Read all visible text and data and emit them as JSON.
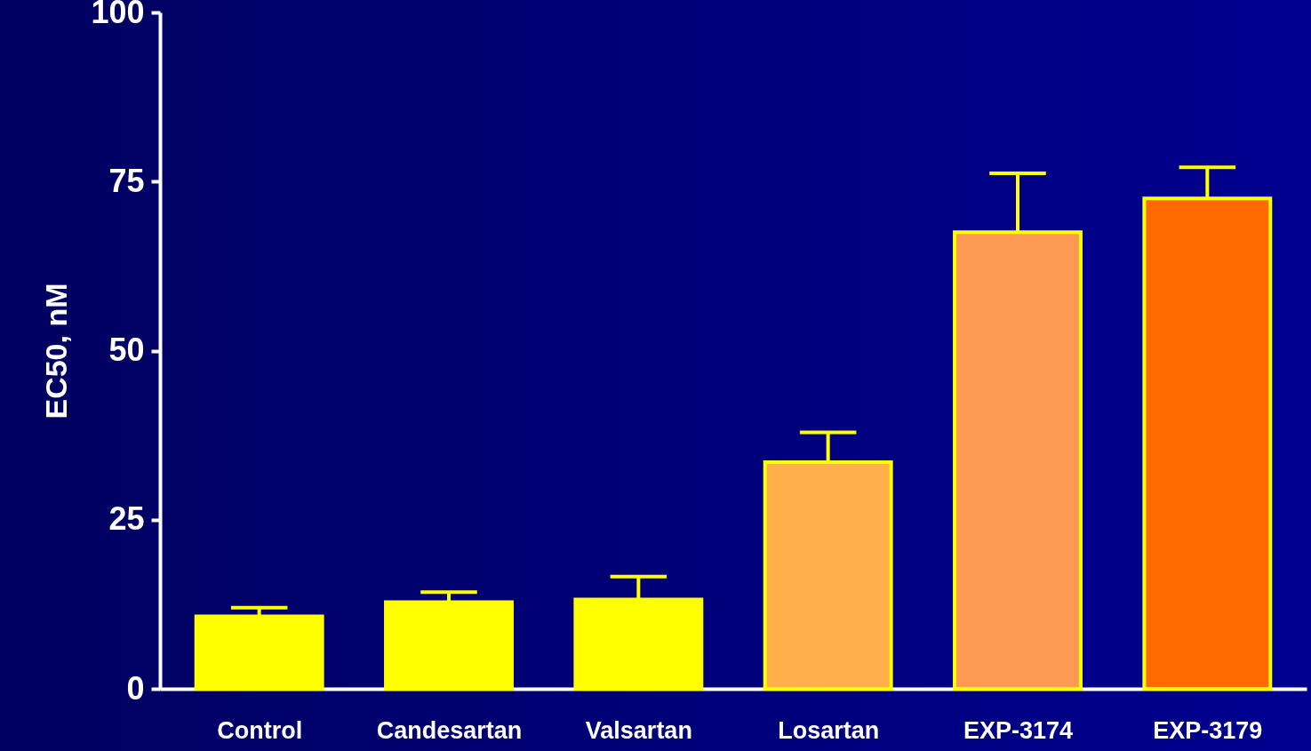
{
  "chart_data": {
    "type": "bar",
    "ylabel": "EC50, nM",
    "categories": [
      "Control",
      "Candesartan",
      "Valsartan",
      "Losartan",
      "EXP-3174",
      "EXP-3179"
    ],
    "values": [
      10.7,
      12.8,
      13.2,
      33.5,
      67.5,
      72.5
    ],
    "errors": [
      [
        10.7,
        12.0
      ],
      [
        12.8,
        14.3
      ],
      [
        13.2,
        16.6
      ],
      [
        33.5,
        37.9
      ],
      [
        67.5,
        76.2
      ],
      [
        72.5,
        77.1
      ]
    ],
    "colors": [
      "#ffff00",
      "#ffff00",
      "#ffff00",
      "#ffb04a",
      "#ff9a55",
      "#ff6a00"
    ],
    "ylim": [
      0,
      100
    ],
    "yticks": [
      0,
      25,
      50,
      75,
      100
    ],
    "grid": false
  }
}
